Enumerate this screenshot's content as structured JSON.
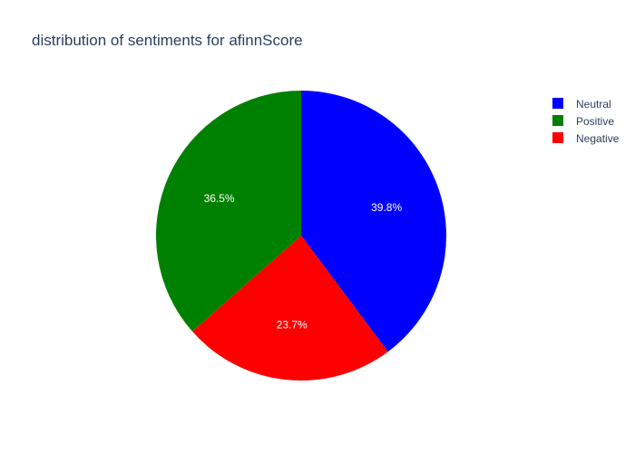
{
  "chart_data": {
    "type": "pie",
    "title": "distribution of sentiments for afinnScore",
    "labels": [
      "Neutral",
      "Positive",
      "Negative"
    ],
    "values": [
      39.8,
      36.5,
      23.7
    ],
    "value_labels": [
      "39.8%",
      "36.5%",
      "23.7%"
    ],
    "colors": [
      "#0000ff",
      "#008000",
      "#ff0000"
    ],
    "legend": {
      "placement": "top-right",
      "entries": [
        "Neutral",
        "Positive",
        "Negative"
      ]
    },
    "render_order": [
      "Neutral",
      "Negative",
      "Positive"
    ],
    "direction": "clockwise",
    "start_angle": "12 o'clock"
  }
}
